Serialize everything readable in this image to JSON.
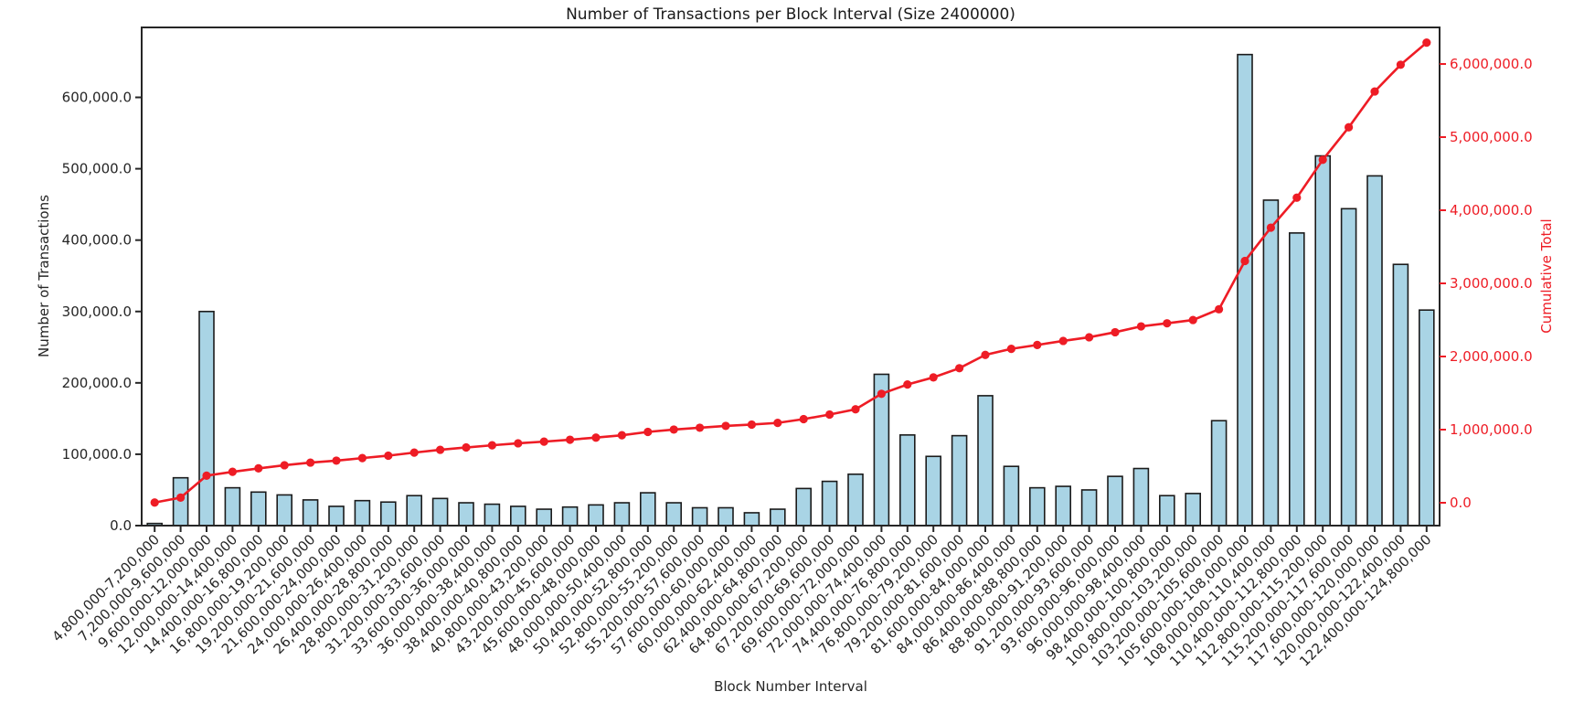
{
  "chart_data": {
    "type": "bar",
    "title": "Number of Transactions per Block Interval (Size 2400000)",
    "xlabel": "Block Number Interval",
    "ylabel_left": "Number of Transactions",
    "ylabel_right": "Cumulative Total",
    "grid": false,
    "legend": "none",
    "categories": [
      "4,800,000-7,200,000",
      "7,200,000-9,600,000",
      "9,600,000-12,000,000",
      "12,000,000-14,400,000",
      "14,400,000-16,800,000",
      "16,800,000-19,200,000",
      "19,200,000-21,600,000",
      "21,600,000-24,000,000",
      "24,000,000-26,400,000",
      "26,400,000-28,800,000",
      "28,800,000-31,200,000",
      "31,200,000-33,600,000",
      "33,600,000-36,000,000",
      "36,000,000-38,400,000",
      "38,400,000-40,800,000",
      "40,800,000-43,200,000",
      "43,200,000-45,600,000",
      "45,600,000-48,000,000",
      "48,000,000-50,400,000",
      "50,400,000-52,800,000",
      "52,800,000-55,200,000",
      "55,200,000-57,600,000",
      "57,600,000-60,000,000",
      "60,000,000-62,400,000",
      "62,400,000-64,800,000",
      "64,800,000-67,200,000",
      "67,200,000-69,600,000",
      "69,600,000-72,000,000",
      "72,000,000-74,400,000",
      "74,400,000-76,800,000",
      "76,800,000-79,200,000",
      "79,200,000-81,600,000",
      "81,600,000-84,000,000",
      "84,000,000-86,400,000",
      "86,400,000-88,800,000",
      "88,800,000-91,200,000",
      "91,200,000-93,600,000",
      "93,600,000-96,000,000",
      "96,000,000-98,400,000",
      "98,400,000-100,800,000",
      "100,800,000-103,200,000",
      "103,200,000-105,600,000",
      "105,600,000-108,000,000",
      "108,000,000-110,400,000",
      "110,400,000-112,800,000",
      "112,800,000-115,200,000",
      "115,200,000-117,600,000",
      "117,600,000-120,000,000",
      "120,000,000-122,400,000",
      "122,400,000-124,800,000"
    ],
    "series": [
      {
        "name": "Number of Transactions",
        "render": "bar",
        "axis": "left",
        "values": [
          3000,
          67000,
          300000,
          53000,
          47000,
          43000,
          36000,
          27000,
          35000,
          33000,
          42000,
          38000,
          32000,
          30000,
          27000,
          23000,
          26000,
          29000,
          32000,
          46000,
          32000,
          25000,
          25000,
          18000,
          23000,
          52000,
          62000,
          72000,
          212000,
          127000,
          97000,
          126000,
          182000,
          83000,
          53000,
          55000,
          50000,
          69000,
          80000,
          42000,
          45000,
          147000,
          660000,
          456000,
          410000,
          518000,
          444000,
          490000,
          366000,
          302000
        ]
      },
      {
        "name": "Cumulative Total",
        "render": "line",
        "axis": "right",
        "values": [
          3000,
          70000,
          370000,
          423000,
          470000,
          513000,
          549000,
          576000,
          611000,
          644000,
          686000,
          724000,
          756000,
          786000,
          813000,
          836000,
          862000,
          891000,
          923000,
          969000,
          1001000,
          1026000,
          1051000,
          1069000,
          1092000,
          1144000,
          1206000,
          1278000,
          1490000,
          1617000,
          1714000,
          1840000,
          2022000,
          2105000,
          2158000,
          2213000,
          2263000,
          2332000,
          2412000,
          2454000,
          2499000,
          2646000,
          3306000,
          3762000,
          4172000,
          4690000,
          5134000,
          5624000,
          5990000,
          6292000
        ]
      }
    ],
    "y_left_tick_values": [
      0,
      100000,
      200000,
      300000,
      400000,
      500000,
      600000
    ],
    "y_left_tick_labels": [
      "0.0",
      "100,000.0",
      "200,000.0",
      "300,000.0",
      "400,000.0",
      "500,000.0",
      "600,000.0"
    ],
    "y_right_tick_values": [
      0,
      1000000,
      2000000,
      3000000,
      4000000,
      5000000,
      6000000
    ],
    "y_right_tick_labels": [
      "0.0",
      "1,000,000.0",
      "2,000,000.0",
      "3,000,000.0",
      "4,000,000.0",
      "5,000,000.0",
      "6,000,000.0"
    ],
    "ylim_left": [
      0,
      698000
    ],
    "ylim_right": [
      -312500,
      6500000
    ]
  },
  "colors": {
    "bar_fill": "#a9d4e5",
    "bar_edge": "#1b1b1b",
    "line": "#ee1c25",
    "text": "#262626",
    "spine": "#262626",
    "background": "#ffffff"
  }
}
